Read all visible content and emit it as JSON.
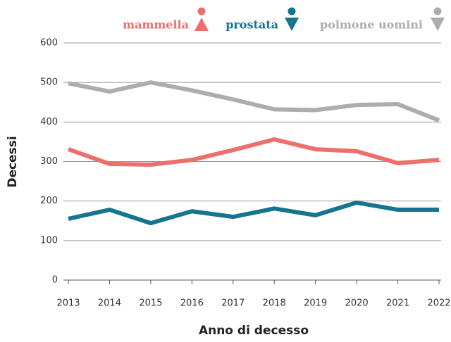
{
  "chart_data": {
    "type": "line",
    "x_label": "Anno di decesso",
    "y_label": "Decessi",
    "categories": [
      "2013",
      "2014",
      "2015",
      "2016",
      "2017",
      "2018",
      "2019",
      "2020",
      "2021",
      "2022"
    ],
    "series": [
      {
        "name": "mammella",
        "color": "#ec6f6c",
        "values": [
          331,
          294,
          292,
          304,
          329,
          356,
          331,
          326,
          296,
          304
        ]
      },
      {
        "name": "prostata",
        "color": "#15748f",
        "values": [
          155,
          178,
          144,
          174,
          160,
          181,
          164,
          196,
          178,
          178
        ]
      },
      {
        "name": "polmone uomini",
        "color": "#acacb1",
        "values": [
          498,
          477,
          500,
          480,
          457,
          432,
          430,
          443,
          445,
          404
        ]
      }
    ],
    "ylim": [
      0,
      600
    ],
    "yticks": [
      0,
      100,
      200,
      300,
      400,
      500,
      600
    ],
    "grid": true
  }
}
